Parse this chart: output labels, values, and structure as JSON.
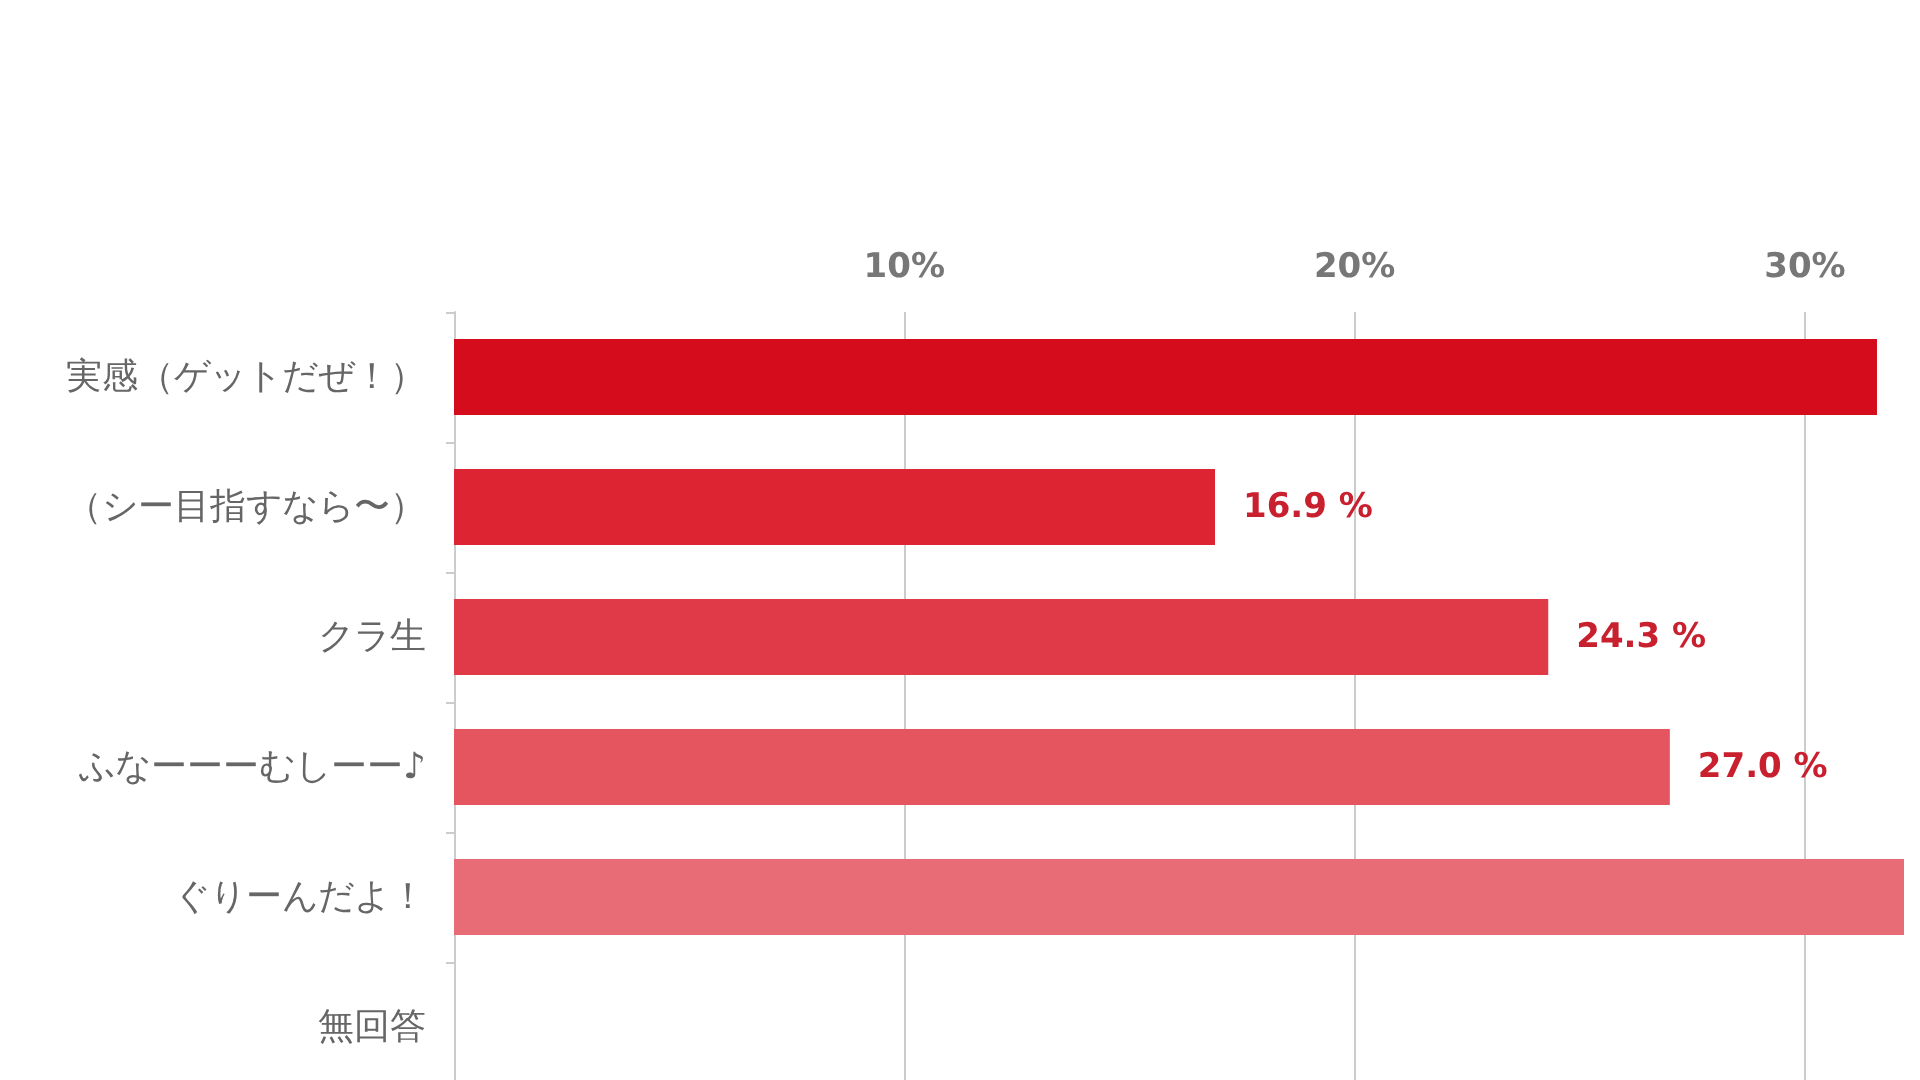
{
  "chart_data": {
    "type": "bar",
    "orientation": "horizontal",
    "categories": [
      "実感（ゲットだぜ！）",
      "（シー目指すなら〜）",
      "クラ生",
      "ふなーーーむしーー♪",
      "ぐりーんだよ！",
      "無回答"
    ],
    "values": [
      31.6,
      16.9,
      24.3,
      27.0,
      32.2,
      null
    ],
    "colors": [
      "#d50c1c",
      "#dc2433",
      "#e03a48",
      "#e4555f",
      "#e86c76",
      "#ec8890"
    ],
    "value_labels": [
      null,
      "16.9 %",
      "24.3 %",
      "27.0 %",
      null,
      null
    ],
    "xlim": [
      0,
      32.2
    ],
    "xticks": [
      {
        "value": 0,
        "label": null
      },
      {
        "value": 10,
        "label": "10%"
      },
      {
        "value": 20,
        "label": "20%"
      },
      {
        "value": 30,
        "label": "30%"
      }
    ],
    "grid": "x"
  }
}
